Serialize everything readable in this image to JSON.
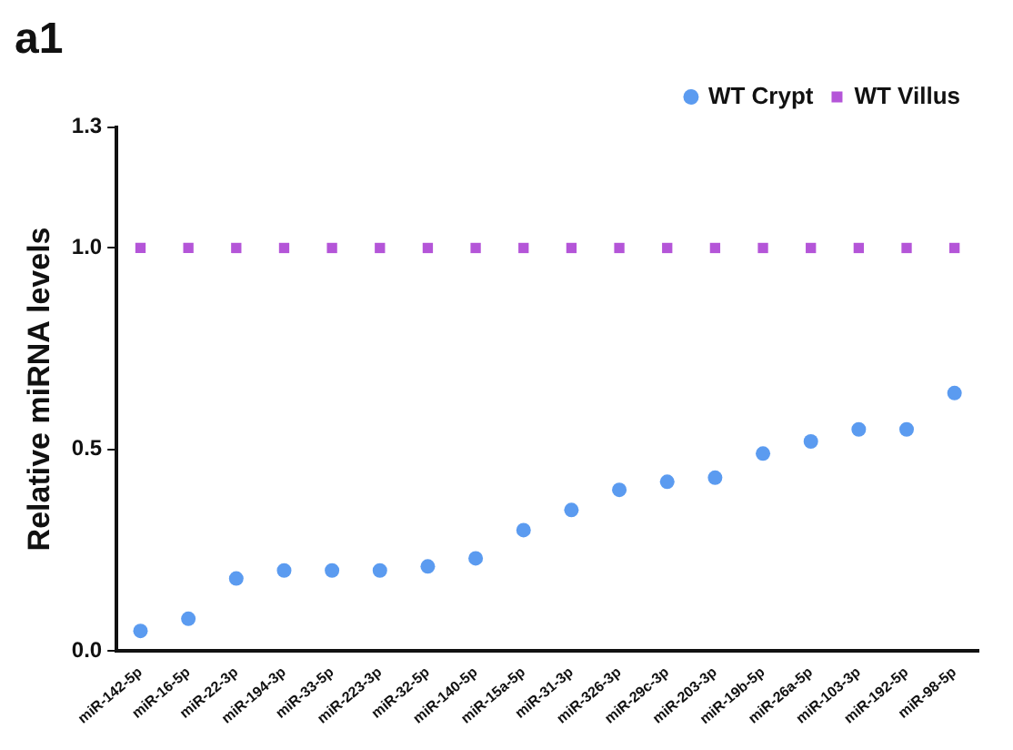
{
  "chart_data": {
    "type": "scatter",
    "title": "a1",
    "ylabel": "Relative miRNA levels",
    "categories": [
      "miR-142-5p",
      "miR-16-5p",
      "miR-22-3p",
      "miR-194-3p",
      "miR-33-5p",
      "miR-223-3p",
      "miR-32-5p",
      "miR-140-5p",
      "miR-15a-5p",
      "miR-31-3p",
      "miR-326-3p",
      "miR-29c-3p",
      "miR-203-3p",
      "miR-19b-5p",
      "miR-26a-5p",
      "miR-103-3p",
      "miR-192-5p",
      "miR-98-5p"
    ],
    "series": [
      {
        "name": "WT Crypt",
        "color": "#5b9bf0",
        "marker": "circle",
        "values": [
          0.05,
          0.08,
          0.18,
          0.2,
          0.2,
          0.2,
          0.21,
          0.23,
          0.3,
          0.35,
          0.4,
          0.42,
          0.43,
          0.49,
          0.52,
          0.55,
          0.55,
          0.64
        ]
      },
      {
        "name": "WT Villus",
        "color": "#b455d8",
        "marker": "square",
        "values": [
          1,
          1,
          1,
          1,
          1,
          1,
          1,
          1,
          1,
          1,
          1,
          1,
          1,
          1,
          1,
          1,
          1,
          1
        ]
      }
    ],
    "ylim": [
      0,
      1.3
    ],
    "yticks": [
      {
        "value": 0,
        "label": "0.0"
      },
      {
        "value": 0.5,
        "label": "0.5"
      },
      {
        "value": 1,
        "label": "1.0"
      },
      1.3
    ],
    "grid": false,
    "legend": "top right"
  }
}
